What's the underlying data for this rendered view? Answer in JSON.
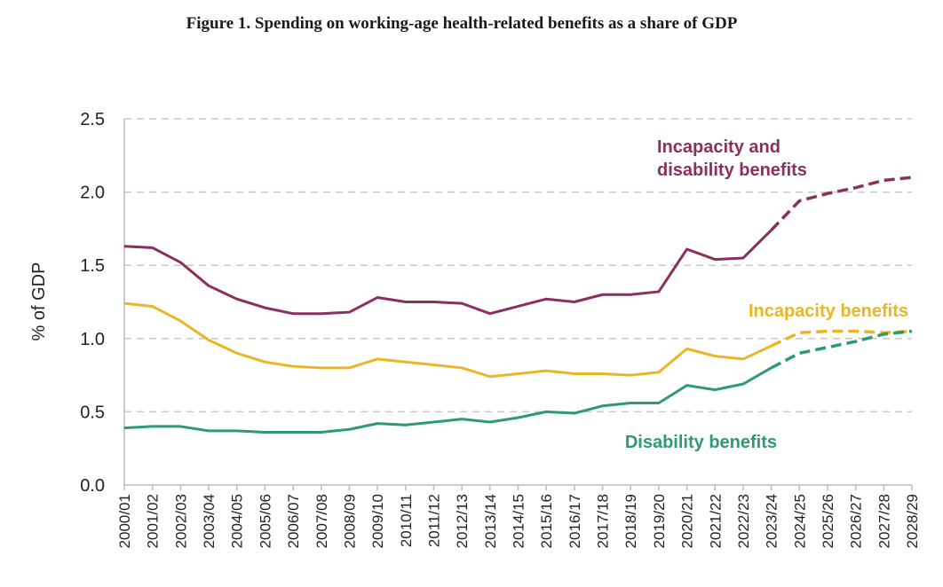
{
  "chart_data": {
    "type": "line",
    "title": "Figure 1. Spending on working-age health-related benefits as a share of GDP",
    "xlabel": "",
    "ylabel": "% of GDP",
    "ylim": [
      0,
      2.5
    ],
    "yticks": [
      "0.0",
      "0.5",
      "1.0",
      "1.5",
      "2.0",
      "2.5"
    ],
    "grid": true,
    "forecast_from_index": 23,
    "categories": [
      "2000/01",
      "2001/02",
      "2002/03",
      "2003/04",
      "2004/05",
      "2005/06",
      "2006/07",
      "2007/08",
      "2008/09",
      "2009/10",
      "2010/11",
      "2011/12",
      "2012/13",
      "2013/14",
      "2014/15",
      "2015/16",
      "2016/17",
      "2017/18",
      "2018/19",
      "2019/20",
      "2020/21",
      "2021/22",
      "2022/23",
      "2023/24",
      "2024/25",
      "2025/26",
      "2026/27",
      "2027/28",
      "2028/29"
    ],
    "series": [
      {
        "name": "Incapacity and disability benefits",
        "label_lines": [
          "Incapacity and",
          "disability benefits"
        ],
        "color": "#8b2f5e",
        "values": [
          1.63,
          1.62,
          1.52,
          1.36,
          1.27,
          1.21,
          1.17,
          1.17,
          1.18,
          1.28,
          1.25,
          1.25,
          1.24,
          1.17,
          1.22,
          1.27,
          1.25,
          1.3,
          1.3,
          1.32,
          1.61,
          1.54,
          1.55,
          1.74,
          1.94,
          1.99,
          2.03,
          2.08,
          2.1
        ]
      },
      {
        "name": "Incapacity benefits",
        "label_lines": [
          "Incapacity benefits"
        ],
        "color": "#ebb623",
        "values": [
          1.24,
          1.22,
          1.12,
          0.99,
          0.9,
          0.84,
          0.81,
          0.8,
          0.8,
          0.86,
          0.84,
          0.82,
          0.8,
          0.74,
          0.76,
          0.78,
          0.76,
          0.76,
          0.75,
          0.77,
          0.93,
          0.88,
          0.86,
          0.95,
          1.04,
          1.05,
          1.05,
          1.04,
          1.05
        ]
      },
      {
        "name": "Disability benefits",
        "label_lines": [
          "Disability benefits"
        ],
        "color": "#2e9a72",
        "values": [
          0.39,
          0.4,
          0.4,
          0.37,
          0.37,
          0.36,
          0.36,
          0.36,
          0.38,
          0.42,
          0.41,
          0.43,
          0.45,
          0.43,
          0.46,
          0.5,
          0.49,
          0.54,
          0.56,
          0.56,
          0.68,
          0.65,
          0.69,
          0.8,
          0.9,
          0.94,
          0.98,
          1.03,
          1.05
        ]
      }
    ]
  }
}
